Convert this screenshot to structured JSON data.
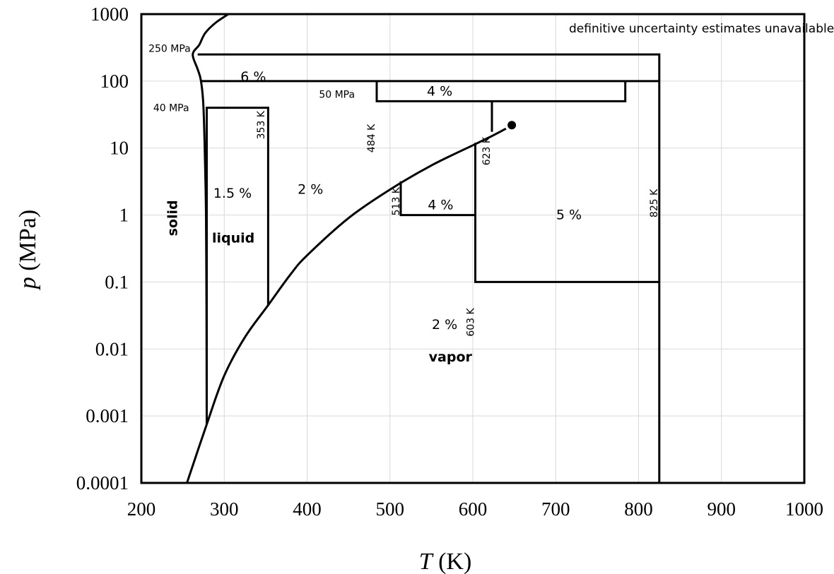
{
  "chart_data": {
    "type": "line",
    "title": "",
    "xlabel_symbol": "T",
    "xlabel_unit": " (K)",
    "ylabel_symbol": "p",
    "ylabel_unit": " (MPa)",
    "xlim": [
      200,
      1000
    ],
    "ylim": [
      0.0001,
      1000
    ],
    "yscale": "log",
    "grid": true,
    "x_ticks": [
      200,
      300,
      400,
      500,
      600,
      700,
      800,
      900,
      1000
    ],
    "y_ticks": [
      {
        "value": 0.0001,
        "label": "0.0001"
      },
      {
        "value": 0.001,
        "label": "0.001"
      },
      {
        "value": 0.01,
        "label": "0.01"
      },
      {
        "value": 0.1,
        "label": "0.1"
      },
      {
        "value": 1,
        "label": "1"
      },
      {
        "value": 10,
        "label": "10"
      },
      {
        "value": 100,
        "label": "100"
      },
      {
        "value": 1000,
        "label": "1000"
      }
    ],
    "phase_curves": {
      "melting": [
        [
          305,
          1000
        ],
        [
          290,
          750
        ],
        [
          277,
          520
        ],
        [
          270,
          350
        ],
        [
          262,
          250
        ],
        [
          268,
          150
        ],
        [
          272,
          100
        ],
        [
          275,
          40
        ],
        [
          277,
          5
        ],
        [
          278,
          1
        ],
        [
          278.5,
          0.1
        ],
        [
          278.7,
          0.01
        ],
        [
          278.8,
          0.002
        ],
        [
          278.9,
          0.00075
        ]
      ],
      "sublimation_vapor": [
        [
          255,
          0.0001
        ],
        [
          278.9,
          0.00075
        ],
        [
          300,
          0.004
        ],
        [
          325,
          0.015
        ],
        [
          353,
          0.045
        ],
        [
          380,
          0.13
        ],
        [
          400,
          0.25
        ],
        [
          450,
          0.9
        ],
        [
          500,
          2.4
        ],
        [
          550,
          5.5
        ],
        [
          600,
          11
        ],
        [
          620,
          14.5
        ],
        [
          640,
          19.5
        ]
      ],
      "critical_point": {
        "x": 647,
        "y": 22
      }
    },
    "uncertainty_boundaries": [
      [
        [
          278.9,
          0.00075
        ],
        [
          278.9,
          40
        ],
        [
          353,
          40
        ],
        [
          353,
          0.045
        ]
      ],
      [
        [
          268,
          250
        ],
        [
          825,
          250
        ],
        [
          825,
          0.0001
        ]
      ],
      [
        [
          272,
          100
        ],
        [
          825,
          100
        ]
      ],
      [
        [
          484,
          100
        ],
        [
          484,
          50
        ],
        [
          784,
          50
        ],
        [
          784,
          100
        ]
      ],
      [
        [
          623,
          50
        ],
        [
          623,
          17.5
        ]
      ],
      [
        [
          603,
          12
        ],
        [
          603,
          0.1
        ],
        [
          825,
          0.1
        ]
      ],
      [
        [
          513,
          3.2
        ],
        [
          513,
          1
        ],
        [
          603,
          1
        ]
      ]
    ],
    "annotations": {
      "top_note": {
        "text": "definitive uncertainty estimates unavailable",
        "x": 876,
        "y": 600
      },
      "mpa_250": {
        "text": "250 MPa",
        "x": 234,
        "y": 300
      },
      "mpa_40": {
        "text": "40 MPa",
        "x": 236,
        "y": 39
      },
      "mpa_50": {
        "text": "50 MPa",
        "x": 436,
        "y": 62
      },
      "k_353": {
        "text": "353 K",
        "x": 345,
        "y": 22
      },
      "k_484": {
        "text": "484 K",
        "x": 478,
        "y": 14
      },
      "k_623": {
        "text": "623 K",
        "x": 617,
        "y": 9
      },
      "k_513": {
        "text": "513 K",
        "x": 508,
        "y": 1.6
      },
      "k_603": {
        "text": "603 K",
        "x": 598,
        "y": 0.025
      },
      "k_825": {
        "text": "825 K",
        "x": 819,
        "y": 1.5
      },
      "pct_6": {
        "text": "6 %",
        "x": 335,
        "y": 115
      },
      "pct_4_top": {
        "text": "4 %",
        "x": 560,
        "y": 70
      },
      "pct_1_5": {
        "text": "1.5 %",
        "x": 310,
        "y": 2.1
      },
      "pct_2_mid": {
        "text": "2 %",
        "x": 404,
        "y": 2.4
      },
      "pct_4_mid": {
        "text": "4 %",
        "x": 561,
        "y": 1.4
      },
      "pct_5": {
        "text": "5 %",
        "x": 716,
        "y": 1.0
      },
      "pct_2_vapor": {
        "text": "2 %",
        "x": 566,
        "y": 0.023
      },
      "solid": {
        "text": "solid",
        "x": 238,
        "y": 0.9
      },
      "liquid": {
        "text": "liquid",
        "x": 311,
        "y": 0.45
      },
      "vapor": {
        "text": "vapor",
        "x": 573,
        "y": 0.0075
      }
    }
  }
}
